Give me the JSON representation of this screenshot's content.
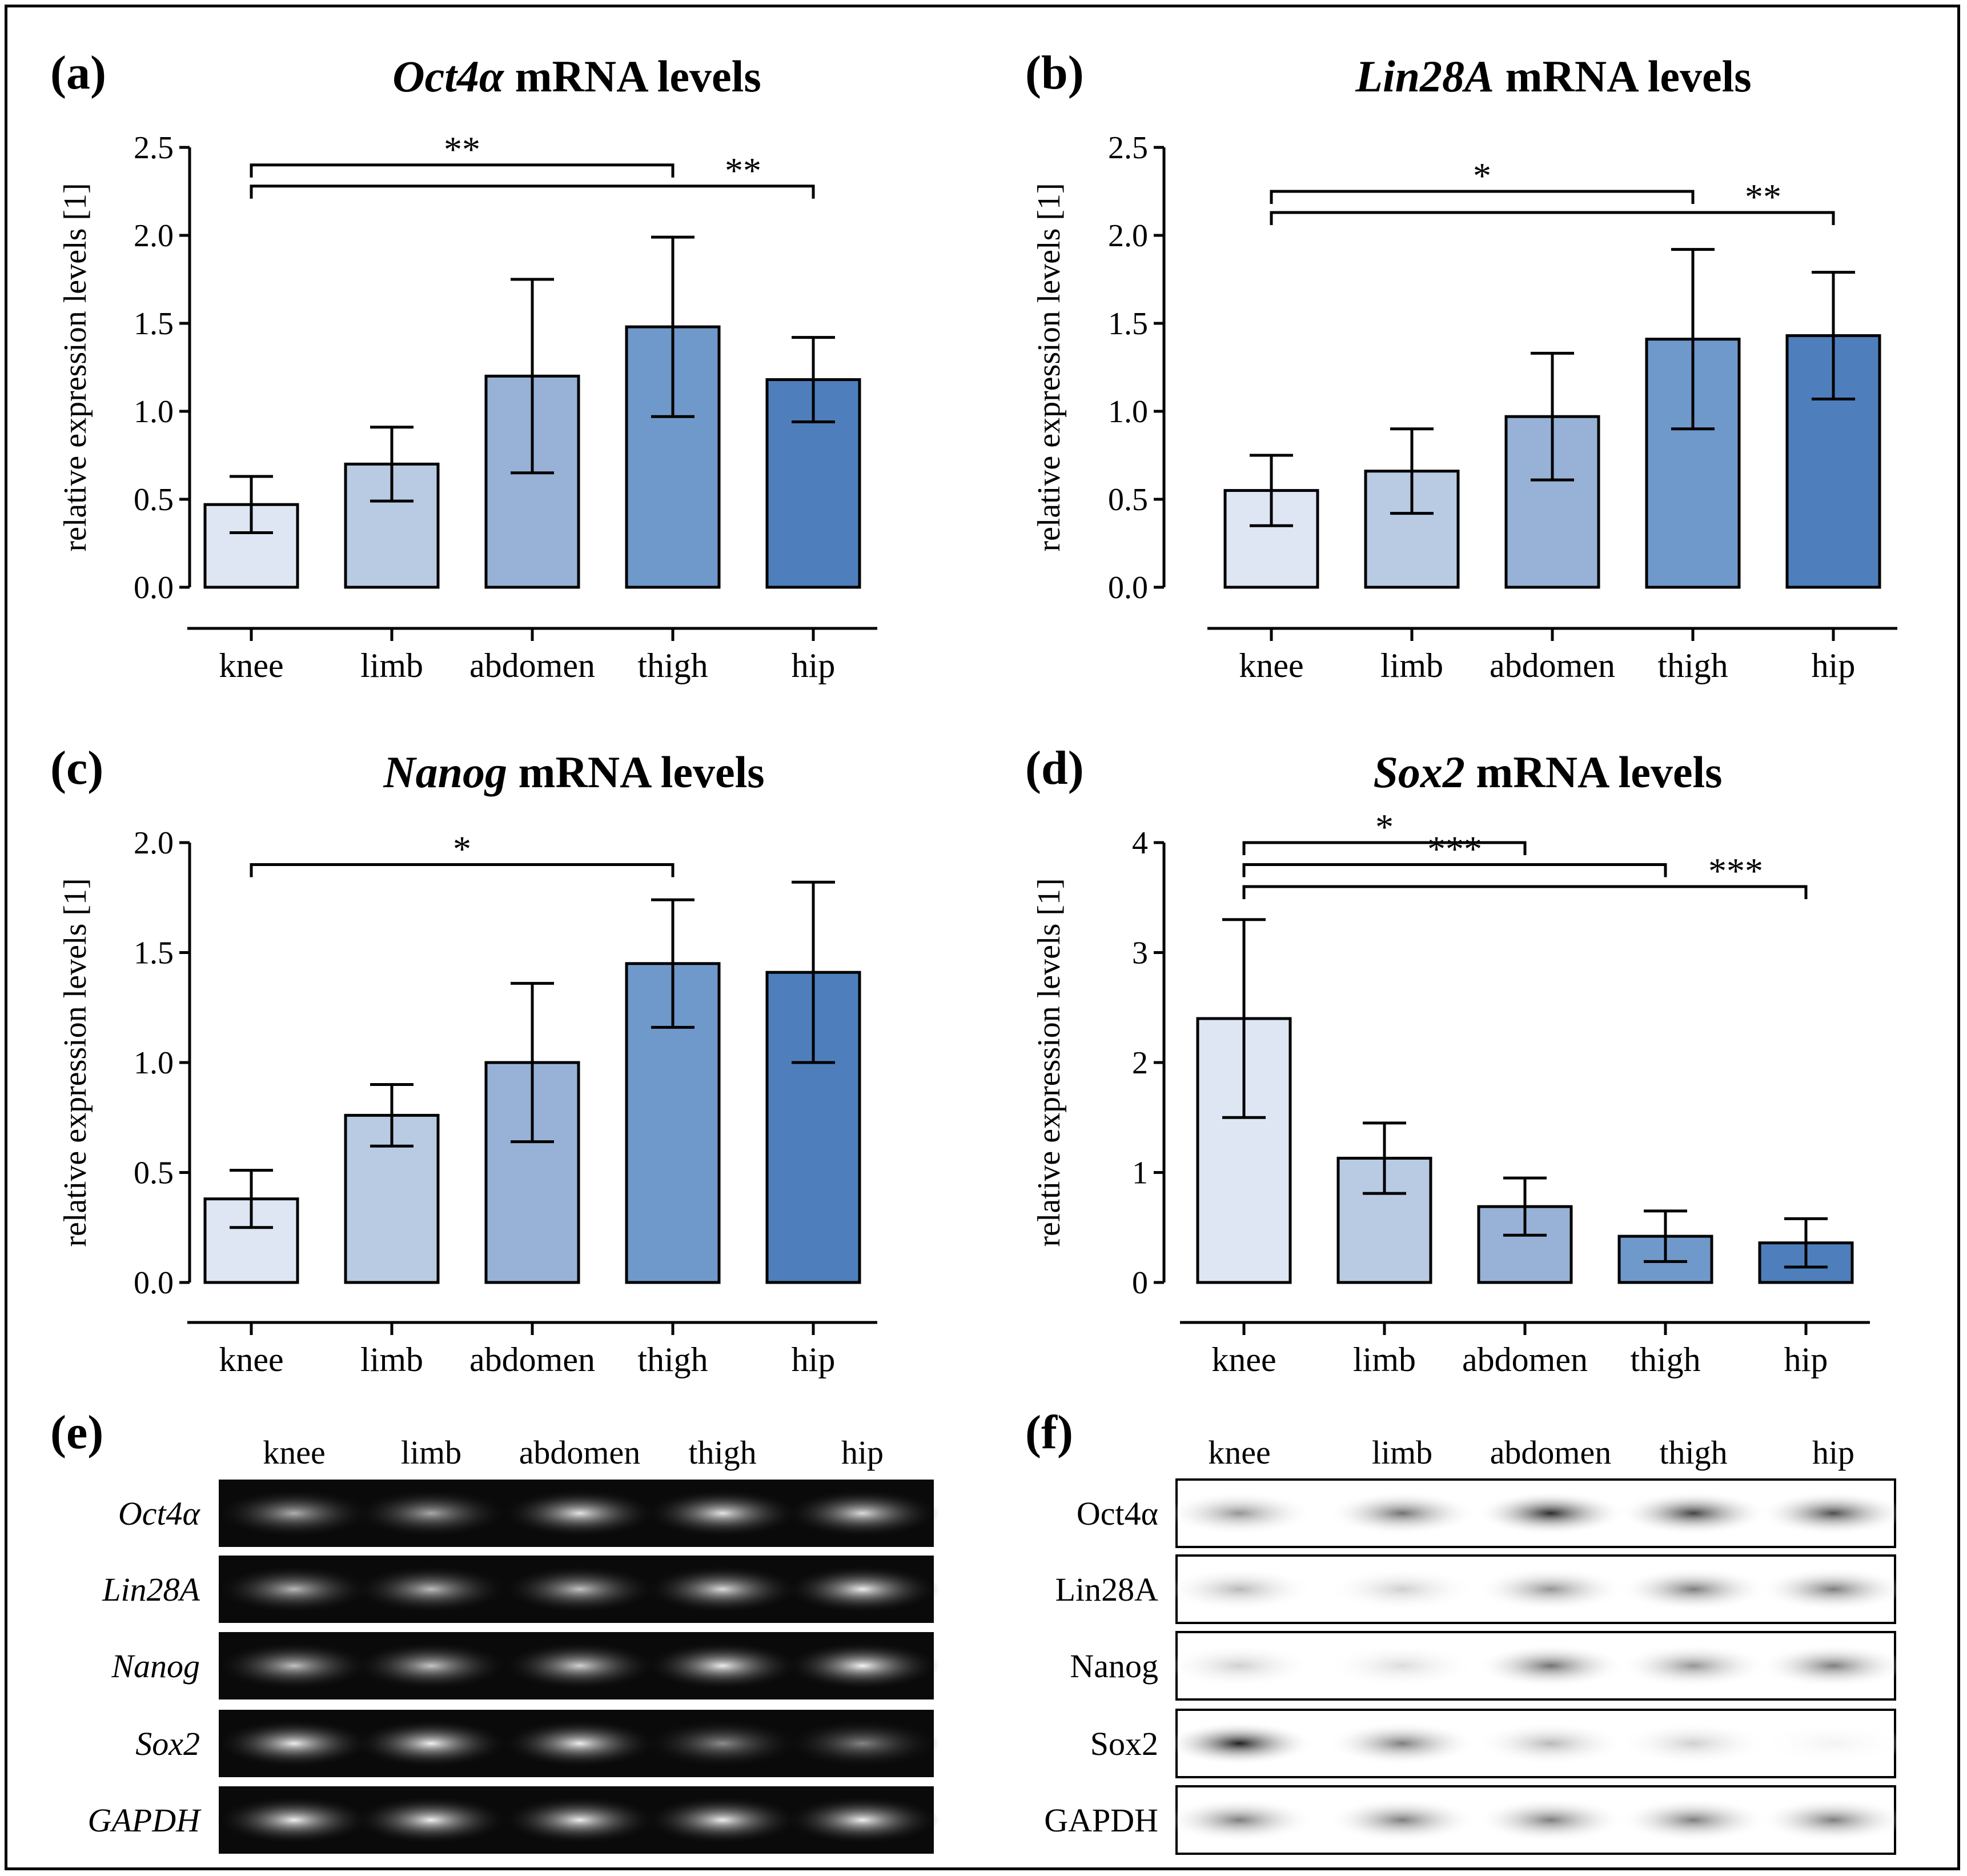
{
  "figure": {
    "background": "#ffffff",
    "frame_color": "#000000"
  },
  "chart_data": [
    {
      "panel": "(a)",
      "type": "bar",
      "title_italic": "Oct4α",
      "title_rest": " mRNA levels",
      "ylabel": "relative expression levels [1]",
      "xlabel": "",
      "categories": [
        "knee",
        "limb",
        "abdomen",
        "thigh",
        "hip"
      ],
      "values": [
        0.47,
        0.7,
        1.2,
        1.48,
        1.18
      ],
      "errors": [
        0.16,
        0.21,
        0.55,
        0.51,
        0.24
      ],
      "colors": [
        "#dde6f2",
        "#b8cbe3",
        "#97b2d6",
        "#7099cb",
        "#4e7fbc"
      ],
      "ylim": [
        0,
        2.5
      ],
      "yticks": [
        0.0,
        0.5,
        1.0,
        1.5,
        2.0,
        2.5
      ],
      "ytick_labels": [
        "0.0",
        "0.5",
        "1.0",
        "1.5",
        "2.0",
        "2.5"
      ],
      "significance": [
        {
          "from": "knee",
          "to": "thigh",
          "label": "**",
          "level": 2.4
        },
        {
          "from": "knee",
          "to": "hip",
          "label": "**",
          "level": 2.28
        }
      ]
    },
    {
      "panel": "(b)",
      "type": "bar",
      "title_italic": "Lin28A",
      "title_rest": " mRNA levels",
      "ylabel": "relative expression levels [1]",
      "xlabel": "",
      "categories": [
        "knee",
        "limb",
        "abdomen",
        "thigh",
        "hip"
      ],
      "values": [
        0.55,
        0.66,
        0.97,
        1.41,
        1.43
      ],
      "errors": [
        0.2,
        0.24,
        0.36,
        0.51,
        0.36
      ],
      "colors": [
        "#dde6f2",
        "#b8cbe3",
        "#97b2d6",
        "#7099cb",
        "#4e7fbc"
      ],
      "ylim": [
        0,
        2.5
      ],
      "yticks": [
        0.0,
        0.5,
        1.0,
        1.5,
        2.0,
        2.5
      ],
      "ytick_labels": [
        "0.0",
        "0.5",
        "1.0",
        "1.5",
        "2.0",
        "2.5"
      ],
      "significance": [
        {
          "from": "knee",
          "to": "thigh",
          "label": "*",
          "level": 2.25
        },
        {
          "from": "knee",
          "to": "hip",
          "label": "**",
          "level": 2.13
        }
      ]
    },
    {
      "panel": "(c)",
      "type": "bar",
      "title_italic": "Nanog",
      "title_rest": " mRNA levels",
      "ylabel": "relative expression levels [1]",
      "xlabel": "",
      "categories": [
        "knee",
        "limb",
        "abdomen",
        "thigh",
        "hip"
      ],
      "values": [
        0.38,
        0.76,
        1.0,
        1.45,
        1.41
      ],
      "errors": [
        0.13,
        0.14,
        0.36,
        0.29,
        0.41
      ],
      "colors": [
        "#dde6f2",
        "#b8cbe3",
        "#97b2d6",
        "#7099cb",
        "#4e7fbc"
      ],
      "ylim": [
        0,
        2.0
      ],
      "yticks": [
        0.0,
        0.5,
        1.0,
        1.5,
        2.0
      ],
      "ytick_labels": [
        "0.0",
        "0.5",
        "1.0",
        "1.5",
        "2.0"
      ],
      "significance": [
        {
          "from": "knee",
          "to": "thigh",
          "label": "*",
          "level": 1.9
        }
      ]
    },
    {
      "panel": "(d)",
      "type": "bar",
      "title_italic": "Sox2",
      "title_rest": " mRNA levels",
      "ylabel": "relative expression levels [1]",
      "xlabel": "",
      "categories": [
        "knee",
        "limb",
        "abdomen",
        "thigh",
        "hip"
      ],
      "values": [
        2.4,
        1.13,
        0.69,
        0.42,
        0.36
      ],
      "errors": [
        0.9,
        0.32,
        0.26,
        0.23,
        0.22
      ],
      "colors": [
        "#dde6f2",
        "#b8cbe3",
        "#97b2d6",
        "#7099cb",
        "#4e7fbc"
      ],
      "ylim": [
        0,
        4
      ],
      "yticks": [
        0,
        1,
        2,
        3,
        4
      ],
      "ytick_labels": [
        "0",
        "1",
        "2",
        "3",
        "4"
      ],
      "significance": [
        {
          "from": "knee",
          "to": "abdomen",
          "label": "*",
          "level": 4.0
        },
        {
          "from": "knee",
          "to": "thigh",
          "label": "***",
          "level": 3.8
        },
        {
          "from": "knee",
          "to": "hip",
          "label": "***",
          "level": 3.6
        }
      ]
    }
  ],
  "gels": {
    "e": {
      "panel": "(e)",
      "lanes": [
        "knee",
        "limb",
        "abdomen",
        "thigh",
        "hip"
      ],
      "rows": [
        {
          "label": "Oct4α",
          "intensities": [
            0.55,
            0.5,
            0.85,
            0.85,
            0.8
          ]
        },
        {
          "label": "Lin28A",
          "intensities": [
            0.6,
            0.62,
            0.65,
            0.8,
            0.9
          ]
        },
        {
          "label": "Nanog",
          "intensities": [
            0.65,
            0.68,
            0.75,
            0.9,
            0.95
          ]
        },
        {
          "label": "Sox2",
          "intensities": [
            0.9,
            0.92,
            0.9,
            0.35,
            0.3
          ]
        },
        {
          "label": "GAPDH",
          "intensities": [
            0.92,
            0.92,
            0.9,
            0.9,
            0.92
          ]
        }
      ]
    },
    "f": {
      "panel": "(f)",
      "lanes": [
        "knee",
        "limb",
        "abdomen",
        "thigh",
        "hip"
      ],
      "rows": [
        {
          "label": "Oct4α",
          "intensities": [
            0.45,
            0.6,
            0.9,
            0.8,
            0.75
          ]
        },
        {
          "label": "Lin28A",
          "intensities": [
            0.3,
            0.2,
            0.45,
            0.55,
            0.55
          ]
        },
        {
          "label": "Nanog",
          "intensities": [
            0.2,
            0.15,
            0.6,
            0.45,
            0.55
          ]
        },
        {
          "label": "Sox2",
          "intensities": [
            0.95,
            0.55,
            0.3,
            0.2,
            0.05
          ]
        },
        {
          "label": "GAPDH",
          "intensities": [
            0.55,
            0.55,
            0.55,
            0.55,
            0.55
          ]
        }
      ]
    }
  }
}
